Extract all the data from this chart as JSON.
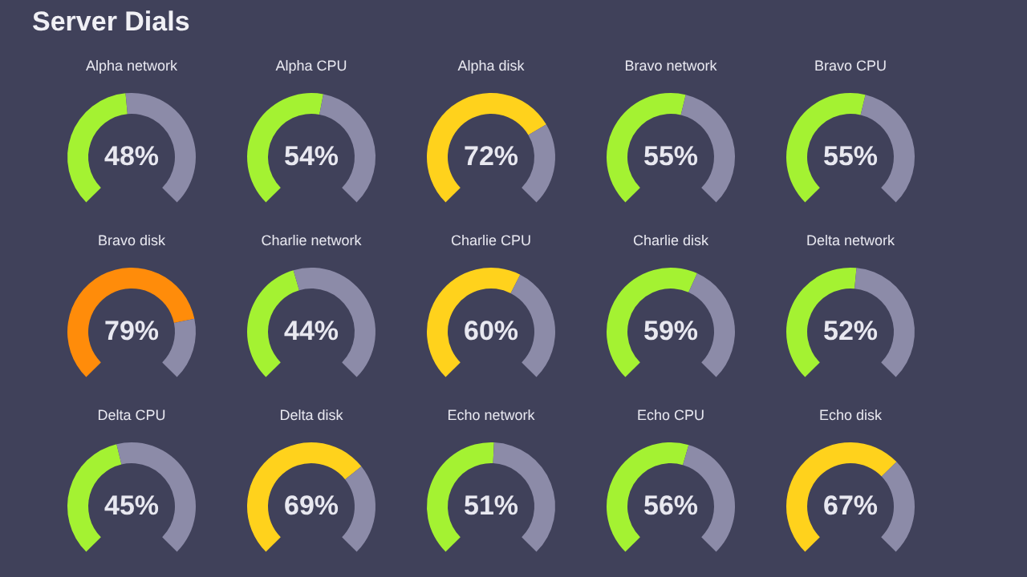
{
  "chart_data": [
    {
      "type": "other",
      "title": "Server Dials"
    },
    {
      "type": "donut",
      "title": "Alpha network",
      "categories": [
        null,
        null
      ],
      "values": [
        48,
        52
      ],
      "colors": [
        "#a4f232",
        "#8c8ba8"
      ],
      "value_labels": [
        "48%",
        null
      ]
    },
    {
      "type": "donut",
      "title": "Alpha CPU",
      "categories": [
        null,
        null
      ],
      "values": [
        54,
        46
      ],
      "colors": [
        "#a4f232",
        "#8c8ba8"
      ],
      "value_labels": [
        "54%",
        null
      ]
    },
    {
      "type": "donut",
      "title": "Alpha disk",
      "categories": [
        null,
        null
      ],
      "values": [
        72,
        28
      ],
      "colors": [
        "#ffd21c",
        "#8c8ba8"
      ],
      "value_labels": [
        "72%",
        null
      ]
    },
    {
      "type": "donut",
      "title": "Bravo network",
      "categories": [
        null,
        null
      ],
      "values": [
        55,
        45
      ],
      "colors": [
        "#a4f232",
        "#8c8ba8"
      ],
      "value_labels": [
        "55%",
        null
      ]
    },
    {
      "type": "donut",
      "title": "Bravo CPU",
      "categories": [
        null,
        null
      ],
      "values": [
        55,
        45
      ],
      "colors": [
        "#a4f232",
        "#8c8ba8"
      ],
      "value_labels": [
        "55%",
        null
      ]
    },
    {
      "type": "donut",
      "title": "Bravo disk",
      "categories": [
        null,
        null
      ],
      "values": [
        79,
        21
      ],
      "colors": [
        "#ff8c0a",
        "#8c8ba8"
      ],
      "value_labels": [
        "79%",
        null
      ]
    },
    {
      "type": "donut",
      "title": "Charlie network",
      "categories": [
        null,
        null
      ],
      "values": [
        44,
        56
      ],
      "colors": [
        "#a4f232",
        "#8c8ba8"
      ],
      "value_labels": [
        "44%",
        null
      ]
    },
    {
      "type": "donut",
      "title": "Charlie CPU",
      "categories": [
        null,
        null
      ],
      "values": [
        60,
        40
      ],
      "colors": [
        "#ffd21c",
        "#8c8ba8"
      ],
      "value_labels": [
        "60%",
        null
      ]
    },
    {
      "type": "donut",
      "title": "Charlie disk",
      "categories": [
        null,
        null
      ],
      "values": [
        59,
        41
      ],
      "colors": [
        "#a4f232",
        "#8c8ba8"
      ],
      "value_labels": [
        "59%",
        null
      ]
    },
    {
      "type": "donut",
      "title": "Delta network",
      "categories": [
        null,
        null
      ],
      "values": [
        52,
        48
      ],
      "colors": [
        "#a4f232",
        "#8c8ba8"
      ],
      "value_labels": [
        "52%",
        null
      ]
    },
    {
      "type": "donut",
      "title": "Delta CPU",
      "categories": [
        null,
        null
      ],
      "values": [
        45,
        55
      ],
      "colors": [
        "#a4f232",
        "#8c8ba8"
      ],
      "value_labels": [
        "45%",
        null
      ]
    },
    {
      "type": "donut",
      "title": "Delta disk",
      "categories": [
        null,
        null
      ],
      "values": [
        69,
        31
      ],
      "colors": [
        "#ffd21c",
        "#8c8ba8"
      ],
      "value_labels": [
        "69%",
        null
      ]
    },
    {
      "type": "donut",
      "title": "Echo network",
      "categories": [
        null,
        null
      ],
      "values": [
        51,
        49
      ],
      "colors": [
        "#a4f232",
        "#8c8ba8"
      ],
      "value_labels": [
        "51%",
        null
      ]
    },
    {
      "type": "donut",
      "title": "Echo CPU",
      "categories": [
        null,
        null
      ],
      "values": [
        56,
        44
      ],
      "colors": [
        "#a4f232",
        "#8c8ba8"
      ],
      "value_labels": [
        "56%",
        null
      ]
    },
    {
      "type": "donut",
      "title": "Echo disk",
      "categories": [
        null,
        null
      ],
      "values": [
        67,
        33
      ],
      "colors": [
        "#ffd21c",
        "#8c8ba8"
      ],
      "value_labels": [
        "67%",
        null
      ]
    }
  ]
}
